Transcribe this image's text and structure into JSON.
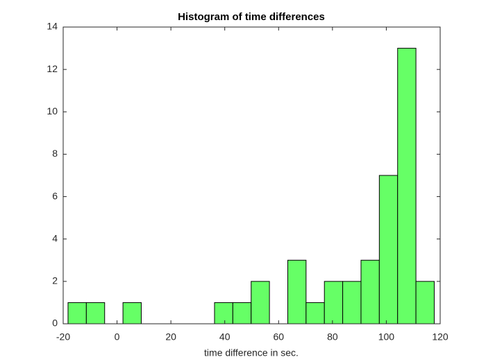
{
  "chart_data": {
    "type": "histogram",
    "title": "Histogram of time differences",
    "x_label": "time difference in sec.",
    "bins": [
      -18.2,
      -11.4,
      -4.6,
      2.2,
      9,
      15.8,
      22.6,
      29.4,
      36.2,
      43,
      49.8,
      56.6,
      63.4,
      70.2,
      77,
      83.8,
      90.6,
      97.4,
      104.2,
      111,
      117.8
    ],
    "values": [
      1,
      1,
      0,
      1,
      0,
      0,
      0,
      0,
      1,
      1,
      2,
      0,
      3,
      1,
      2,
      2,
      3,
      7,
      13,
      2
    ],
    "color": "#66ff66",
    "xlim": [
      -20,
      120
    ],
    "xticks": [
      -20,
      0,
      20,
      40,
      60,
      80,
      100,
      120
    ],
    "ylim": [
      0,
      14
    ],
    "yticks": [
      0,
      2,
      4,
      6,
      8,
      10,
      12,
      14
    ]
  }
}
